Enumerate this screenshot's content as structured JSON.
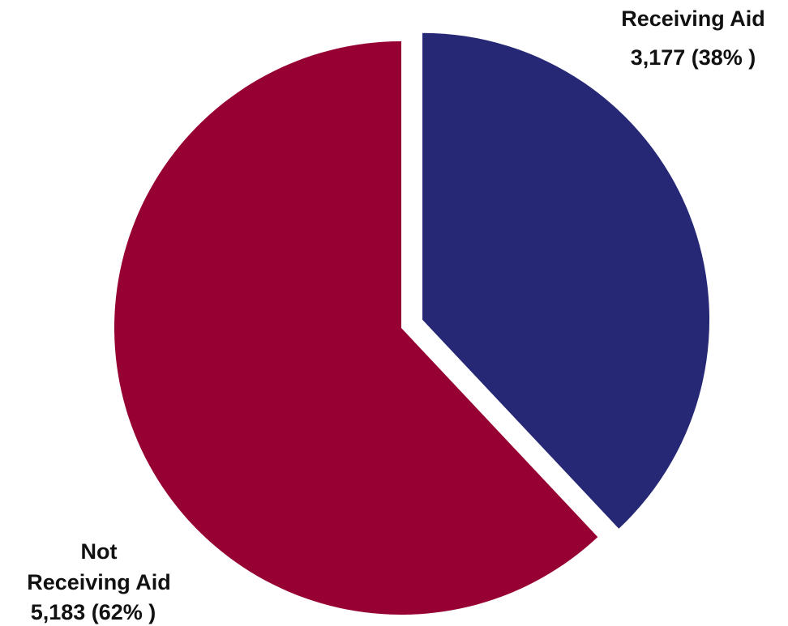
{
  "chart_data": {
    "type": "pie",
    "title": "",
    "slices": [
      {
        "label": "Receiving Aid",
        "value": 3177,
        "percent": 38,
        "value_text": "3,177 (38% )",
        "color": "#262875",
        "exploded": true
      },
      {
        "label": "Not Receiving Aid",
        "label_lines": [
          "Not",
          "Receiving Aid"
        ],
        "value": 5183,
        "percent": 62,
        "value_text": "5,183 (62% )",
        "color": "#960033",
        "exploded": false
      }
    ],
    "start_angle": "12 o'clock",
    "direction": "clockwise"
  }
}
